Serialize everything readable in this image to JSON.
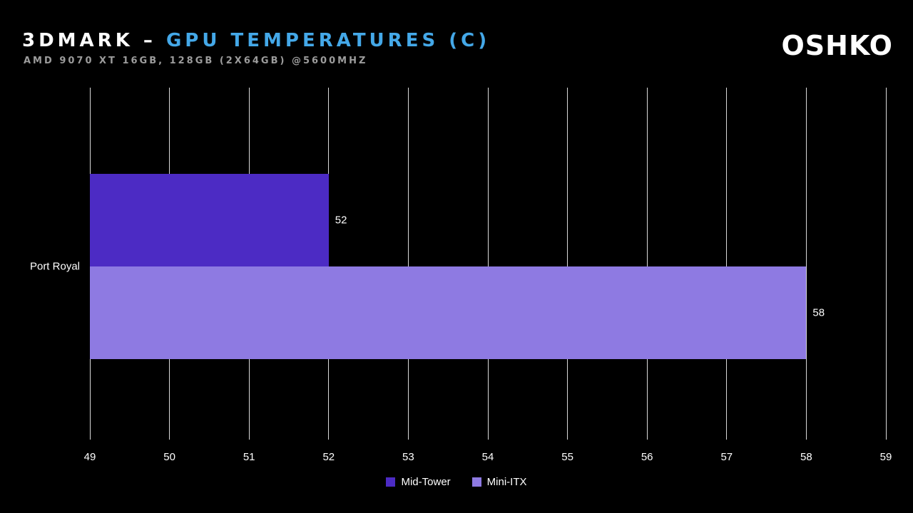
{
  "header": {
    "title_main": "3DMARK – ",
    "title_accent": "GPU TEMPERATURES (C)",
    "subtitle": "AMD 9070 XT 16GB, 128GB (2X64GB) @5600MHZ",
    "logo": "OSHKO"
  },
  "colors": {
    "background": "#000000",
    "title_text": "#FFFFFF",
    "title_accent": "#44A8E8",
    "subtitle_gray": "#9C9C9C",
    "gridline": "#D9D9D9",
    "mid_tower": "#4C2BC4",
    "mini_itx": "#8E7AE2"
  },
  "chart_data": {
    "type": "bar",
    "orientation": "horizontal",
    "title": "3DMARK – GPU TEMPERATURES (C)",
    "subtitle": "AMD 9070 XT 16GB, 128GB (2X64GB) @5600MHZ",
    "categories": [
      "Port Royal"
    ],
    "series": [
      {
        "name": "Mid-Tower",
        "color": "#4C2BC4",
        "values": [
          52
        ]
      },
      {
        "name": "Mini-ITX",
        "color": "#8E7AE2",
        "values": [
          58
        ]
      }
    ],
    "xlabel": "",
    "ylabel": "",
    "xlim": [
      49,
      59
    ],
    "xticks": [
      49,
      50,
      51,
      52,
      53,
      54,
      55,
      56,
      57,
      58,
      59
    ],
    "grid": true,
    "value_labels": true,
    "legend_position": "bottom"
  }
}
